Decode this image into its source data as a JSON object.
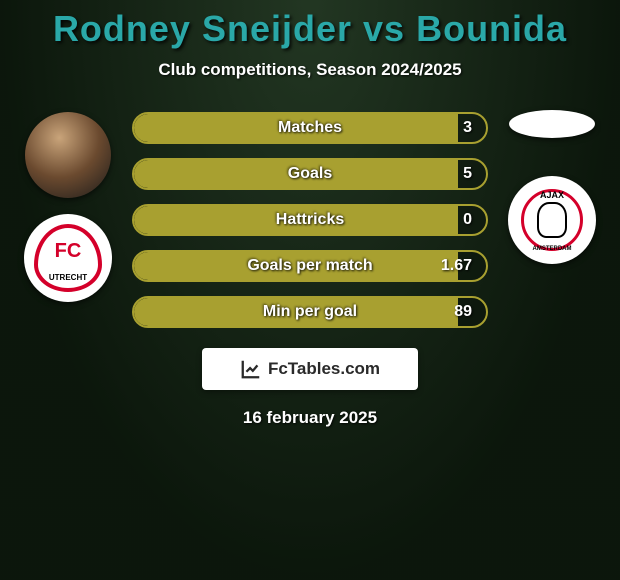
{
  "title": {
    "player1": "Rodney Sneijder",
    "vs": "vs",
    "player2": "Bounida",
    "color": "#2aa8a8"
  },
  "subtitle": "Club competitions, Season 2024/2025",
  "left": {
    "club_name": "utrecht",
    "club_caption": "UTRECHT"
  },
  "right": {
    "club_name": "ajax",
    "club_top": "AJAX",
    "club_bottom": "AMSTERDAM"
  },
  "stats": [
    {
      "label": "Matches",
      "value": "3",
      "fill_pct": 92
    },
    {
      "label": "Goals",
      "value": "5",
      "fill_pct": 92
    },
    {
      "label": "Hattricks",
      "value": "0",
      "fill_pct": 92
    },
    {
      "label": "Goals per match",
      "value": "1.67",
      "fill_pct": 92
    },
    {
      "label": "Min per goal",
      "value": "89",
      "fill_pct": 92
    }
  ],
  "stat_style": {
    "border_color": "#a8a030",
    "fill_color": "#a8a030",
    "track_color": "rgba(0,0,0,0.18)",
    "label_color": "#ffffff"
  },
  "footer": {
    "site": "FcTables.com"
  },
  "date": "16 february 2025",
  "background_color": "#1a2e1a"
}
